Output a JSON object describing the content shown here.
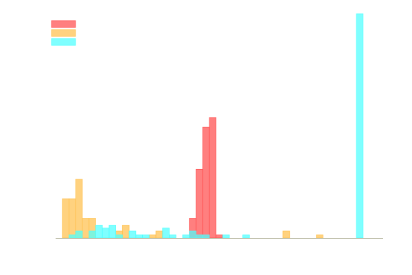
{
  "chart_data": {
    "type": "bar",
    "title": "",
    "xlabel": "",
    "ylabel": "",
    "grid": false,
    "legend": "top-left",
    "x_domain": [
      0,
      49
    ],
    "ylim": [
      0,
      22.9
    ],
    "series": [
      {
        "color": "#ff4d4d",
        "bins": [
          [
            20,
            2
          ],
          [
            21,
            7
          ],
          [
            22,
            11.3
          ],
          [
            23,
            12.3
          ],
          [
            24,
            0.3
          ]
        ]
      },
      {
        "color": "#ffc04d",
        "bins": [
          [
            1,
            4
          ],
          [
            2,
            4
          ],
          [
            3,
            6
          ],
          [
            4,
            2
          ],
          [
            5,
            2
          ],
          [
            9,
            0.7
          ],
          [
            10,
            1.3
          ],
          [
            14,
            0.3
          ],
          [
            15,
            0.7
          ],
          [
            34,
            0.7
          ],
          [
            39,
            0.3
          ]
        ]
      },
      {
        "color": "#4dffff",
        "bins": [
          [
            2,
            0.3
          ],
          [
            3,
            0.7
          ],
          [
            5,
            0.7
          ],
          [
            6,
            1.3
          ],
          [
            7,
            1
          ],
          [
            8,
            1.3
          ],
          [
            9,
            0.3
          ],
          [
            11,
            0.7
          ],
          [
            12,
            0.3
          ],
          [
            13,
            0.3
          ],
          [
            16,
            1
          ],
          [
            17,
            0.3
          ],
          [
            19,
            0.3
          ],
          [
            20,
            0.7
          ],
          [
            21,
            0.3
          ],
          [
            22,
            0.3
          ],
          [
            25,
            0.3
          ],
          [
            28,
            0.3
          ],
          [
            45,
            22.9
          ]
        ]
      }
    ]
  }
}
